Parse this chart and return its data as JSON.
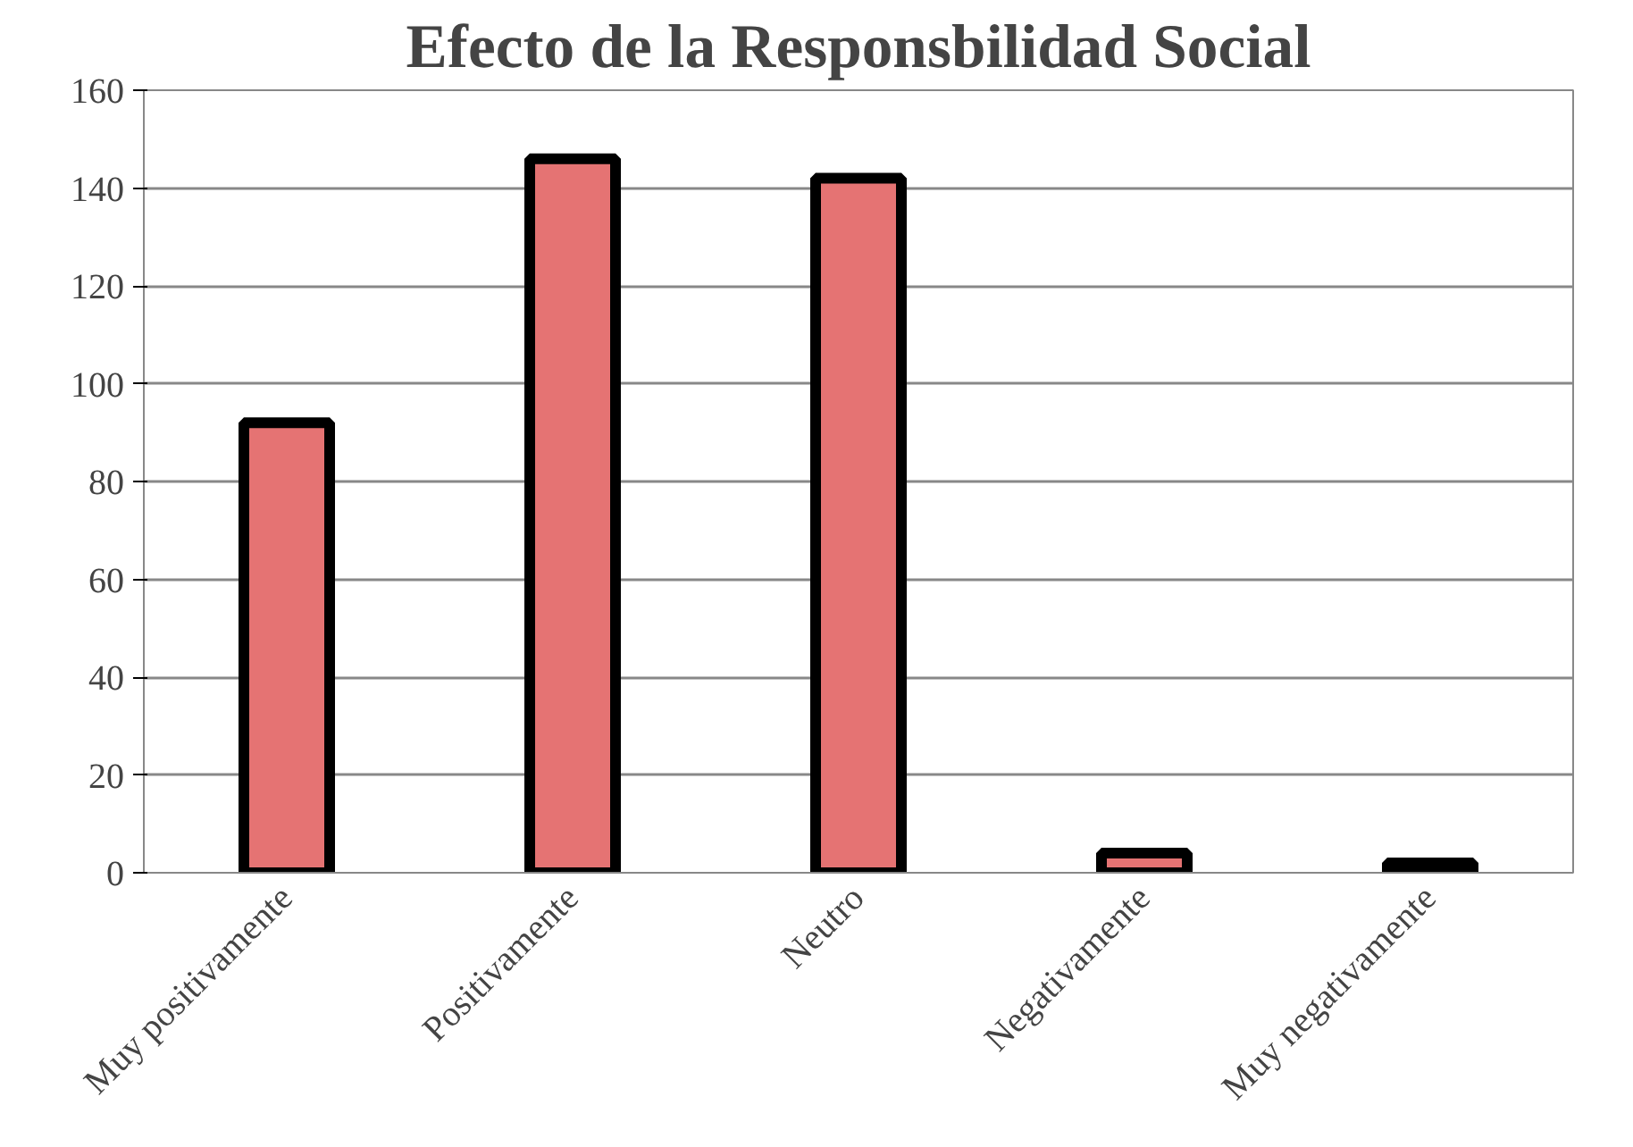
{
  "chart_data": {
    "type": "bar",
    "title": "Efecto de la Responsbilidad Social",
    "categories": [
      "Muy positivamente",
      "Positivamente",
      "Neutro",
      "Negativamente",
      "Muy negativamente"
    ],
    "values": [
      92,
      146,
      142,
      4,
      2
    ],
    "color": "#e57373",
    "ylim": [
      0,
      160
    ],
    "yticks": [
      0,
      20,
      40,
      60,
      80,
      100,
      120,
      140,
      160
    ],
    "grid": "y"
  }
}
